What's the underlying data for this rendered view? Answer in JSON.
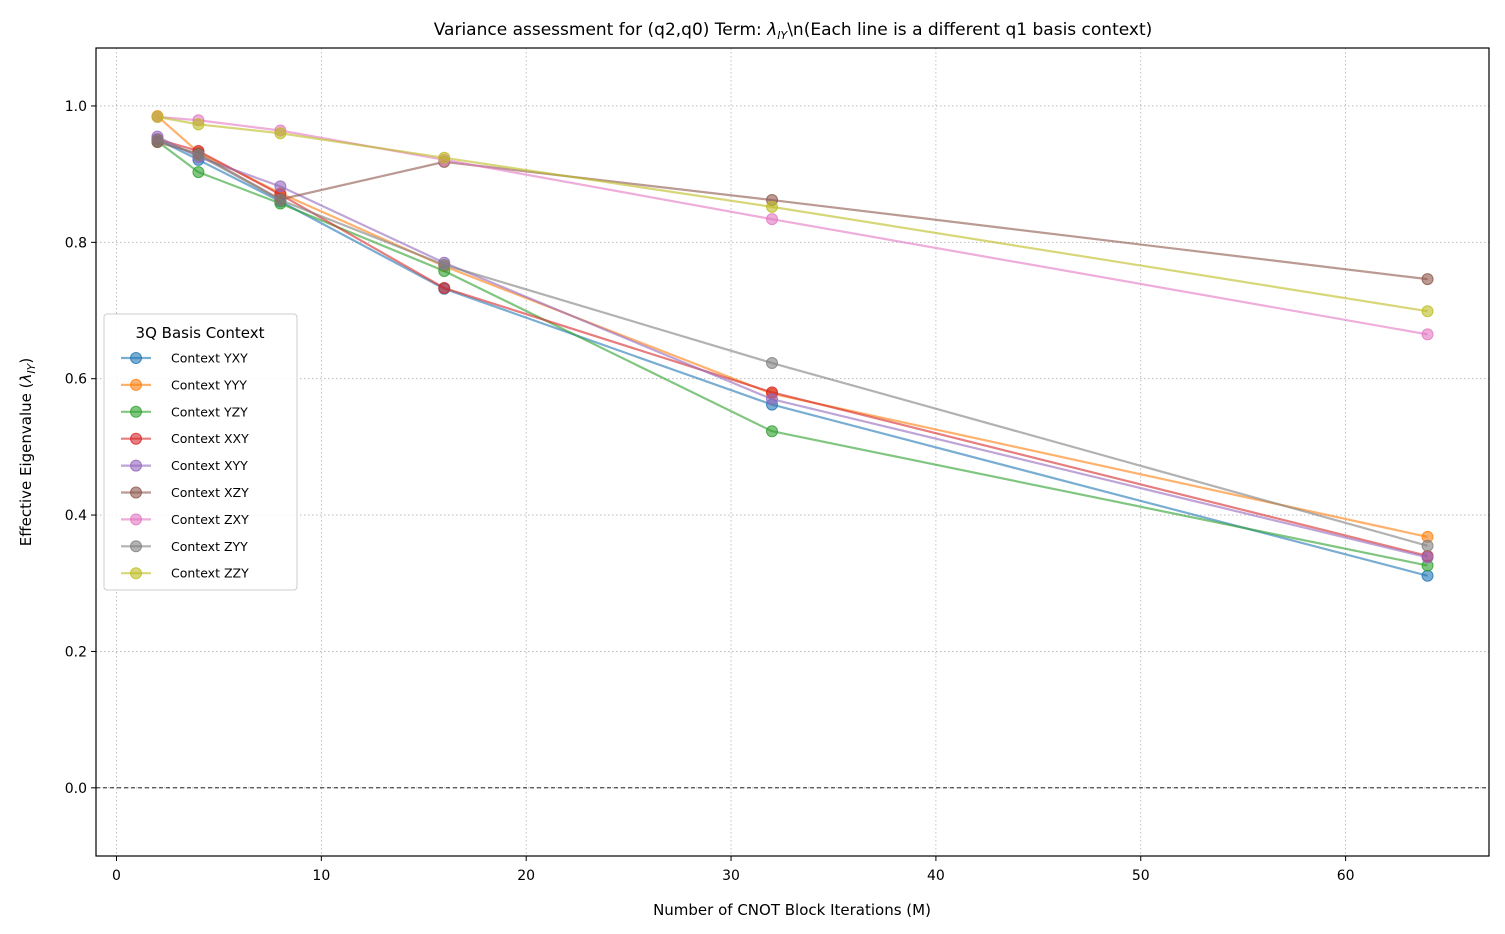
{
  "chart_data": {
    "type": "line",
    "title_prefix": "Variance assessment for (q2,q0) Term: ",
    "title_symbol": "λ",
    "title_subscript": "IY",
    "title_suffix": "\\n(Each line is a different q1 basis context)",
    "xlabel": "Number of CNOT Block Iterations (M)",
    "ylabel_prefix": "Effective Eigenvalue (",
    "ylabel_symbol": "λ",
    "ylabel_subscript": "IY",
    "ylabel_suffix": ")",
    "xlim": [
      -1,
      67
    ],
    "ylim": [
      -0.1,
      1.085
    ],
    "xticks": [
      0,
      10,
      20,
      30,
      40,
      50,
      60
    ],
    "xtick_labels": [
      "0",
      "10",
      "20",
      "30",
      "40",
      "50",
      "60"
    ],
    "yticks": [
      0.0,
      0.2,
      0.4,
      0.6,
      0.8,
      1.0
    ],
    "ytick_labels": [
      "0.0",
      "0.2",
      "0.4",
      "0.6",
      "0.8",
      "1.0"
    ],
    "grid": true,
    "reference_line_y": 0.0,
    "legend_title": "3Q Basis Context",
    "legend_position": "center-left",
    "x": [
      2,
      4,
      8,
      16,
      32,
      64
    ],
    "series": [
      {
        "name": "Context YXY",
        "color": "#1f77b4",
        "values": [
          0.951,
          0.921,
          0.86,
          0.732,
          0.562,
          0.311
        ]
      },
      {
        "name": "Context YYY",
        "color": "#ff7f0e",
        "values": [
          0.985,
          0.932,
          0.872,
          0.765,
          0.578,
          0.368
        ]
      },
      {
        "name": "Context YZY",
        "color": "#2ca02c",
        "values": [
          0.948,
          0.903,
          0.857,
          0.758,
          0.523,
          0.326
        ]
      },
      {
        "name": "Context XXY",
        "color": "#d62728",
        "values": [
          0.951,
          0.934,
          0.87,
          0.733,
          0.58,
          0.34
        ]
      },
      {
        "name": "Context XYY",
        "color": "#9467bd",
        "values": [
          0.955,
          0.925,
          0.882,
          0.77,
          0.57,
          0.338
        ]
      },
      {
        "name": "Context XZY",
        "color": "#8c564b",
        "values": [
          0.947,
          0.93,
          0.863,
          0.918,
          0.862,
          0.746
        ]
      },
      {
        "name": "Context ZXY",
        "color": "#e377c2",
        "values": [
          0.984,
          0.979,
          0.964,
          0.921,
          0.834,
          0.665
        ]
      },
      {
        "name": "Context ZYY",
        "color": "#7f7f7f",
        "values": [
          0.95,
          0.928,
          0.862,
          0.767,
          0.623,
          0.355
        ]
      },
      {
        "name": "Context ZZY",
        "color": "#bcbd22",
        "values": [
          0.984,
          0.973,
          0.96,
          0.924,
          0.852,
          0.699
        ]
      }
    ]
  }
}
